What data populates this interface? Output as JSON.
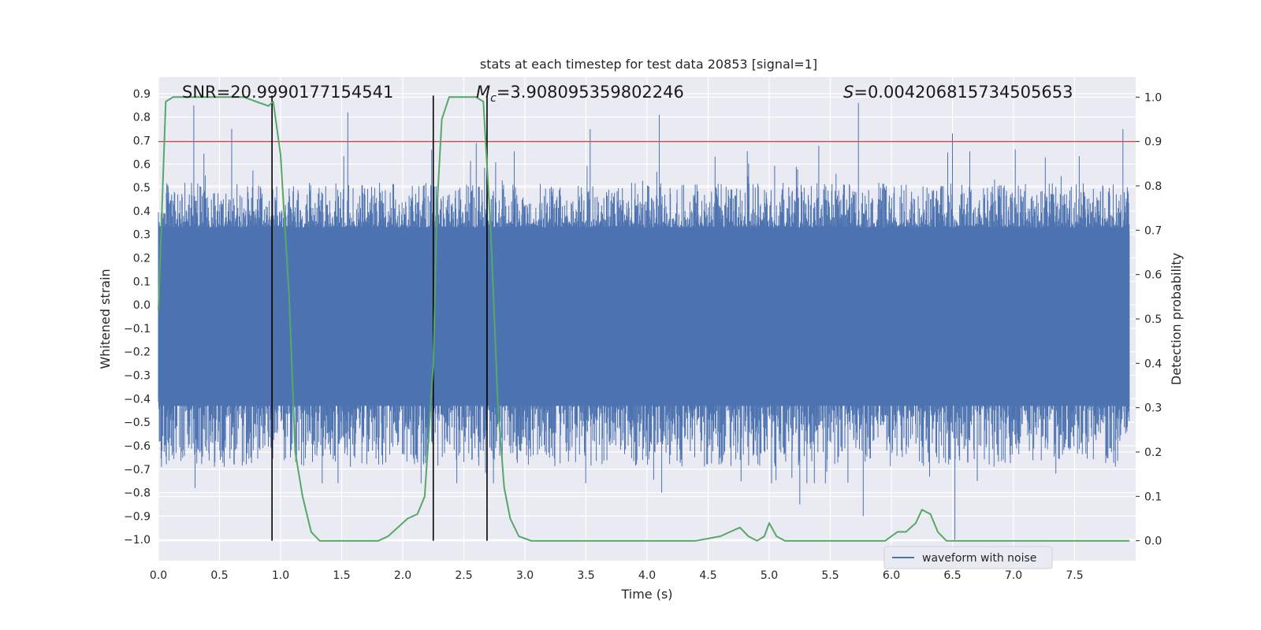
{
  "chart_data": {
    "type": "line",
    "title": "stats at each timestep for test data 20853 [signal=1]",
    "xlabel": "Time (s)",
    "ylabel": "Whitened strain",
    "y2label": "Detection probability",
    "xlim": [
      0.0,
      8.0
    ],
    "ylim": [
      -1.09,
      0.97
    ],
    "y2lim": [
      -0.045,
      1.045
    ],
    "grid": true,
    "xticks": [
      "0.0",
      "0.5",
      "1.0",
      "1.5",
      "2.0",
      "2.5",
      "3.0",
      "3.5",
      "4.0",
      "4.5",
      "5.0",
      "5.5",
      "6.0",
      "6.5",
      "7.0",
      "7.5"
    ],
    "xtick_values": [
      0.0,
      0.5,
      1.0,
      1.5,
      2.0,
      2.5,
      3.0,
      3.5,
      4.0,
      4.5,
      5.0,
      5.5,
      6.0,
      6.5,
      7.0,
      7.5
    ],
    "yticks": [
      "0.9",
      "0.8",
      "0.7",
      "0.6",
      "0.5",
      "0.4",
      "0.3",
      "0.2",
      "0.1",
      "0.0",
      "−0.1",
      "−0.2",
      "−0.3",
      "−0.4",
      "−0.5",
      "−0.6",
      "−0.7",
      "−0.8",
      "−0.9",
      "−1.0"
    ],
    "ytick_values": [
      0.9,
      0.8,
      0.7,
      0.6,
      0.5,
      0.4,
      0.3,
      0.2,
      0.1,
      0.0,
      -0.1,
      -0.2,
      -0.3,
      -0.4,
      -0.5,
      -0.6,
      -0.7,
      -0.8,
      -0.9,
      -1.0
    ],
    "y2ticks": [
      "1.0",
      "0.9",
      "0.8",
      "0.7",
      "0.6",
      "0.5",
      "0.4",
      "0.3",
      "0.2",
      "0.1",
      "0.0"
    ],
    "y2tick_values": [
      1.0,
      0.9,
      0.8,
      0.7,
      0.6,
      0.5,
      0.4,
      0.3,
      0.2,
      0.1,
      0.0
    ],
    "annotations": {
      "snr": "SNR=20.9990177154541",
      "mc_symbol": "M",
      "mc_sub": "c",
      "mc_value": "=3.908095359802246",
      "s_symbol": "S",
      "s_value": "=0.004206815734505653"
    },
    "threshold": {
      "y2": 0.9,
      "color": "#c44e52"
    },
    "vertical_lines": [
      0.93,
      2.25,
      2.69
    ],
    "legend": {
      "label": "waveform with noise",
      "placement": "lower-right",
      "color": "#4c72b0"
    },
    "series": [
      {
        "name": "waveform with noise",
        "color": "#4c72b0",
        "noise_envelope": {
          "core": 0.31,
          "typical_peak": 0.45,
          "max": 0.85,
          "min": -1.0
        },
        "peaks": [
          {
            "x": 0.29,
            "y": 0.85
          },
          {
            "x": 0.6,
            "y": 0.75
          },
          {
            "x": 1.55,
            "y": 0.82
          },
          {
            "x": 4.1,
            "y": 0.81
          },
          {
            "x": 5.73,
            "y": 0.86
          },
          {
            "x": 6.5,
            "y": 0.73
          },
          {
            "x": 0.3,
            "y": -0.78
          },
          {
            "x": 1.47,
            "y": -0.76
          },
          {
            "x": 4.12,
            "y": -0.8
          },
          {
            "x": 5.25,
            "y": -0.85
          },
          {
            "x": 5.77,
            "y": -0.9
          },
          {
            "x": 6.52,
            "y": -1.0
          }
        ]
      },
      {
        "name": "",
        "axis": "right",
        "color": "#55a868",
        "x": [
          0.0,
          0.06,
          0.12,
          0.2,
          0.3,
          0.4,
          0.5,
          0.6,
          0.7,
          0.8,
          0.9,
          0.94,
          1.0,
          1.07,
          1.12,
          1.18,
          1.25,
          1.32,
          1.4,
          1.48,
          1.56,
          1.64,
          1.72,
          1.8,
          1.88,
          1.96,
          2.04,
          2.12,
          2.18,
          2.25,
          2.28,
          2.32,
          2.38,
          2.45,
          2.52,
          2.6,
          2.66,
          2.72,
          2.78,
          2.83,
          2.88,
          2.95,
          3.05,
          3.2,
          3.35,
          3.5,
          3.6,
          3.7,
          3.8,
          4.0,
          4.2,
          4.4,
          4.6,
          4.68,
          4.76,
          4.83,
          4.9,
          4.96,
          5.0,
          5.06,
          5.13,
          5.2,
          5.4,
          5.6,
          5.8,
          5.95,
          6.0,
          6.05,
          6.12,
          6.2,
          6.25,
          6.32,
          6.38,
          6.45,
          6.6,
          6.8,
          6.9,
          7.0,
          7.1,
          7.3,
          7.5,
          7.7,
          7.95
        ],
        "y": [
          0.52,
          0.99,
          1.0,
          1.0,
          1.0,
          1.0,
          1.0,
          1.0,
          1.0,
          0.99,
          0.98,
          0.99,
          0.87,
          0.55,
          0.2,
          0.1,
          0.02,
          0.0,
          0.0,
          0.0,
          0.0,
          0.0,
          0.0,
          0.0,
          0.01,
          0.03,
          0.05,
          0.06,
          0.1,
          0.4,
          0.75,
          0.95,
          1.0,
          1.0,
          1.0,
          1.0,
          0.99,
          0.7,
          0.3,
          0.12,
          0.05,
          0.01,
          0.0,
          0.0,
          0.0,
          0.0,
          0.0,
          0.0,
          0.0,
          0.0,
          0.0,
          0.0,
          0.01,
          0.02,
          0.03,
          0.01,
          0.0,
          0.01,
          0.04,
          0.01,
          0.0,
          0.0,
          0.0,
          0.0,
          0.0,
          0.0,
          0.01,
          0.02,
          0.02,
          0.04,
          0.07,
          0.06,
          0.02,
          0.0,
          0.0,
          0.0,
          0.0,
          0.0,
          0.0,
          0.0,
          0.0,
          0.0,
          0.0
        ]
      }
    ]
  }
}
